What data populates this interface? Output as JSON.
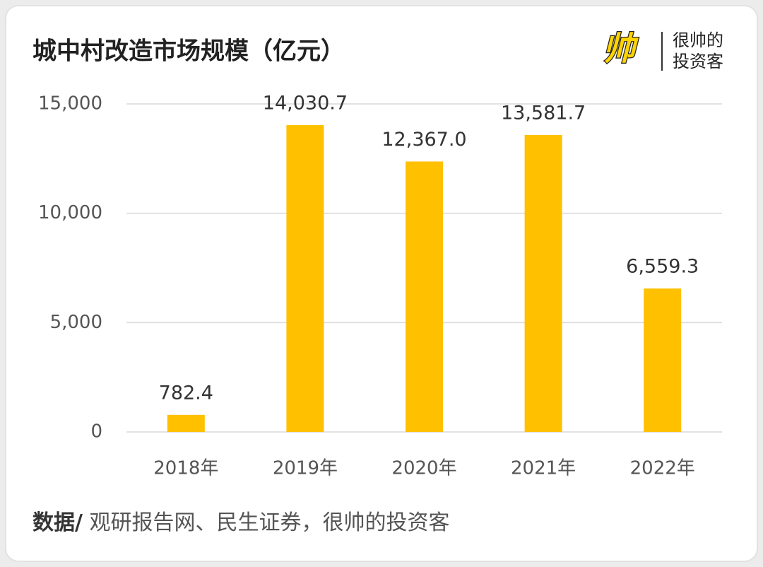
{
  "chart_data": {
    "type": "bar",
    "title": "城中村改造市场规模（亿元）",
    "categories": [
      "2018年",
      "2019年",
      "2020年",
      "2021年",
      "2022年"
    ],
    "values": [
      782.4,
      14030.7,
      12367.0,
      13581.7,
      6559.3
    ],
    "value_labels": [
      "782.4",
      "14,030.7",
      "12,367.0",
      "13,581.7",
      "6,559.3"
    ],
    "color": "#ffc000",
    "ylim": [
      0,
      15000
    ],
    "yticks": [
      0,
      {
        "value": 5000,
        "label": "5,000"
      },
      {
        "value": 10000,
        "label": "10,000"
      },
      {
        "value": 15000,
        "label": "15,000"
      }
    ],
    "grid": true
  },
  "logo": {
    "mark": "帅",
    "line1": "很帅的",
    "line2": "投资客"
  },
  "source": {
    "label": "数据/",
    "text": " 观研报告网、民生证券，很帅的投资客"
  }
}
